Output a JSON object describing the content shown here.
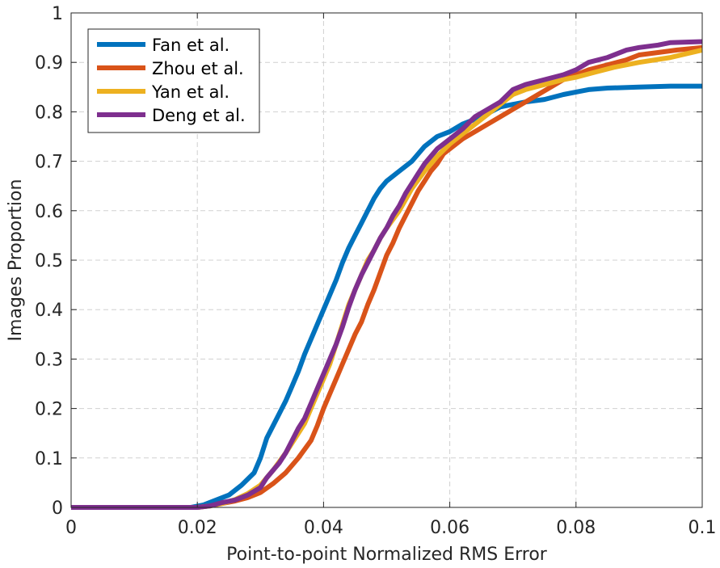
{
  "chart_data": {
    "type": "line",
    "title": "",
    "xlabel": "Point-to-point Normalized RMS Error",
    "ylabel": "Images Proportion",
    "xlim": [
      0,
      0.1
    ],
    "ylim": [
      0,
      1
    ],
    "x_ticks": [
      "0",
      "0.02",
      "0.04",
      "0.06",
      "0.08",
      "0.1"
    ],
    "y_ticks": [
      "0",
      "0.1",
      "0.2",
      "0.3",
      "0.4",
      "0.5",
      "0.6",
      "0.7",
      "0.8",
      "0.9",
      "1"
    ],
    "grid": true,
    "legend_position": "top-left",
    "series": [
      {
        "name": "Fan et al.",
        "color": "#0072BD",
        "points": [
          [
            0,
            0
          ],
          [
            0.019,
            0
          ],
          [
            0.021,
            0.005
          ],
          [
            0.023,
            0.015
          ],
          [
            0.025,
            0.025
          ],
          [
            0.027,
            0.045
          ],
          [
            0.029,
            0.07
          ],
          [
            0.03,
            0.1
          ],
          [
            0.031,
            0.14
          ],
          [
            0.032,
            0.165
          ],
          [
            0.033,
            0.19
          ],
          [
            0.034,
            0.215
          ],
          [
            0.035,
            0.245
          ],
          [
            0.036,
            0.275
          ],
          [
            0.037,
            0.31
          ],
          [
            0.038,
            0.34
          ],
          [
            0.039,
            0.37
          ],
          [
            0.04,
            0.4
          ],
          [
            0.041,
            0.43
          ],
          [
            0.042,
            0.46
          ],
          [
            0.043,
            0.495
          ],
          [
            0.044,
            0.525
          ],
          [
            0.045,
            0.55
          ],
          [
            0.046,
            0.575
          ],
          [
            0.047,
            0.6
          ],
          [
            0.048,
            0.625
          ],
          [
            0.049,
            0.645
          ],
          [
            0.05,
            0.66
          ],
          [
            0.052,
            0.68
          ],
          [
            0.054,
            0.7
          ],
          [
            0.056,
            0.73
          ],
          [
            0.058,
            0.75
          ],
          [
            0.06,
            0.76
          ],
          [
            0.062,
            0.775
          ],
          [
            0.065,
            0.79
          ],
          [
            0.068,
            0.81
          ],
          [
            0.07,
            0.815
          ],
          [
            0.072,
            0.82
          ],
          [
            0.075,
            0.825
          ],
          [
            0.078,
            0.835
          ],
          [
            0.08,
            0.84
          ],
          [
            0.082,
            0.845
          ],
          [
            0.085,
            0.848
          ],
          [
            0.09,
            0.85
          ],
          [
            0.095,
            0.852
          ],
          [
            0.1,
            0.852
          ]
        ]
      },
      {
        "name": "Zhou et al.",
        "color": "#D95319",
        "points": [
          [
            0,
            0
          ],
          [
            0.02,
            0
          ],
          [
            0.022,
            0.003
          ],
          [
            0.024,
            0.008
          ],
          [
            0.026,
            0.013
          ],
          [
            0.028,
            0.02
          ],
          [
            0.03,
            0.03
          ],
          [
            0.032,
            0.048
          ],
          [
            0.034,
            0.07
          ],
          [
            0.036,
            0.1
          ],
          [
            0.038,
            0.135
          ],
          [
            0.039,
            0.165
          ],
          [
            0.04,
            0.2
          ],
          [
            0.041,
            0.23
          ],
          [
            0.042,
            0.26
          ],
          [
            0.043,
            0.29
          ],
          [
            0.044,
            0.32
          ],
          [
            0.045,
            0.35
          ],
          [
            0.046,
            0.375
          ],
          [
            0.047,
            0.41
          ],
          [
            0.048,
            0.44
          ],
          [
            0.049,
            0.475
          ],
          [
            0.05,
            0.51
          ],
          [
            0.051,
            0.535
          ],
          [
            0.052,
            0.565
          ],
          [
            0.053,
            0.59
          ],
          [
            0.054,
            0.615
          ],
          [
            0.055,
            0.64
          ],
          [
            0.056,
            0.66
          ],
          [
            0.057,
            0.68
          ],
          [
            0.058,
            0.695
          ],
          [
            0.059,
            0.715
          ],
          [
            0.06,
            0.725
          ],
          [
            0.062,
            0.745
          ],
          [
            0.064,
            0.76
          ],
          [
            0.066,
            0.775
          ],
          [
            0.068,
            0.79
          ],
          [
            0.07,
            0.805
          ],
          [
            0.072,
            0.82
          ],
          [
            0.074,
            0.835
          ],
          [
            0.076,
            0.85
          ],
          [
            0.078,
            0.865
          ],
          [
            0.08,
            0.875
          ],
          [
            0.082,
            0.885
          ],
          [
            0.085,
            0.895
          ],
          [
            0.088,
            0.905
          ],
          [
            0.09,
            0.915
          ],
          [
            0.093,
            0.92
          ],
          [
            0.096,
            0.925
          ],
          [
            0.1,
            0.93
          ]
        ]
      },
      {
        "name": "Yan et al.",
        "color": "#EDB120",
        "points": [
          [
            0,
            0
          ],
          [
            0.02,
            0
          ],
          [
            0.022,
            0.003
          ],
          [
            0.024,
            0.008
          ],
          [
            0.026,
            0.016
          ],
          [
            0.028,
            0.028
          ],
          [
            0.03,
            0.045
          ],
          [
            0.032,
            0.075
          ],
          [
            0.034,
            0.11
          ],
          [
            0.035,
            0.13
          ],
          [
            0.036,
            0.15
          ],
          [
            0.037,
            0.17
          ],
          [
            0.038,
            0.2
          ],
          [
            0.039,
            0.23
          ],
          [
            0.04,
            0.26
          ],
          [
            0.041,
            0.29
          ],
          [
            0.042,
            0.33
          ],
          [
            0.043,
            0.37
          ],
          [
            0.044,
            0.41
          ],
          [
            0.045,
            0.44
          ],
          [
            0.046,
            0.47
          ],
          [
            0.047,
            0.5
          ],
          [
            0.048,
            0.52
          ],
          [
            0.049,
            0.545
          ],
          [
            0.05,
            0.565
          ],
          [
            0.052,
            0.6
          ],
          [
            0.054,
            0.645
          ],
          [
            0.056,
            0.68
          ],
          [
            0.058,
            0.71
          ],
          [
            0.06,
            0.735
          ],
          [
            0.062,
            0.755
          ],
          [
            0.064,
            0.775
          ],
          [
            0.066,
            0.795
          ],
          [
            0.068,
            0.815
          ],
          [
            0.07,
            0.835
          ],
          [
            0.072,
            0.845
          ],
          [
            0.075,
            0.855
          ],
          [
            0.078,
            0.865
          ],
          [
            0.08,
            0.87
          ],
          [
            0.083,
            0.88
          ],
          [
            0.086,
            0.89
          ],
          [
            0.09,
            0.9
          ],
          [
            0.095,
            0.91
          ],
          [
            0.1,
            0.925
          ]
        ]
      },
      {
        "name": "Deng et al.",
        "color": "#7E2F8E",
        "points": [
          [
            0,
            0
          ],
          [
            0.02,
            0
          ],
          [
            0.022,
            0.003
          ],
          [
            0.024,
            0.01
          ],
          [
            0.026,
            0.015
          ],
          [
            0.028,
            0.025
          ],
          [
            0.03,
            0.04
          ],
          [
            0.031,
            0.06
          ],
          [
            0.032,
            0.075
          ],
          [
            0.033,
            0.09
          ],
          [
            0.034,
            0.11
          ],
          [
            0.035,
            0.135
          ],
          [
            0.036,
            0.16
          ],
          [
            0.037,
            0.18
          ],
          [
            0.038,
            0.21
          ],
          [
            0.039,
            0.24
          ],
          [
            0.04,
            0.27
          ],
          [
            0.041,
            0.3
          ],
          [
            0.042,
            0.33
          ],
          [
            0.043,
            0.365
          ],
          [
            0.044,
            0.405
          ],
          [
            0.045,
            0.44
          ],
          [
            0.046,
            0.47
          ],
          [
            0.047,
            0.495
          ],
          [
            0.048,
            0.52
          ],
          [
            0.049,
            0.545
          ],
          [
            0.05,
            0.565
          ],
          [
            0.051,
            0.59
          ],
          [
            0.052,
            0.61
          ],
          [
            0.053,
            0.635
          ],
          [
            0.054,
            0.655
          ],
          [
            0.055,
            0.675
          ],
          [
            0.056,
            0.695
          ],
          [
            0.057,
            0.71
          ],
          [
            0.058,
            0.725
          ],
          [
            0.059,
            0.735
          ],
          [
            0.06,
            0.745
          ],
          [
            0.062,
            0.765
          ],
          [
            0.064,
            0.79
          ],
          [
            0.066,
            0.805
          ],
          [
            0.068,
            0.82
          ],
          [
            0.07,
            0.845
          ],
          [
            0.072,
            0.855
          ],
          [
            0.075,
            0.865
          ],
          [
            0.078,
            0.875
          ],
          [
            0.08,
            0.885
          ],
          [
            0.082,
            0.9
          ],
          [
            0.085,
            0.91
          ],
          [
            0.088,
            0.925
          ],
          [
            0.09,
            0.93
          ],
          [
            0.093,
            0.935
          ],
          [
            0.095,
            0.94
          ],
          [
            0.1,
            0.942
          ]
        ]
      }
    ]
  }
}
